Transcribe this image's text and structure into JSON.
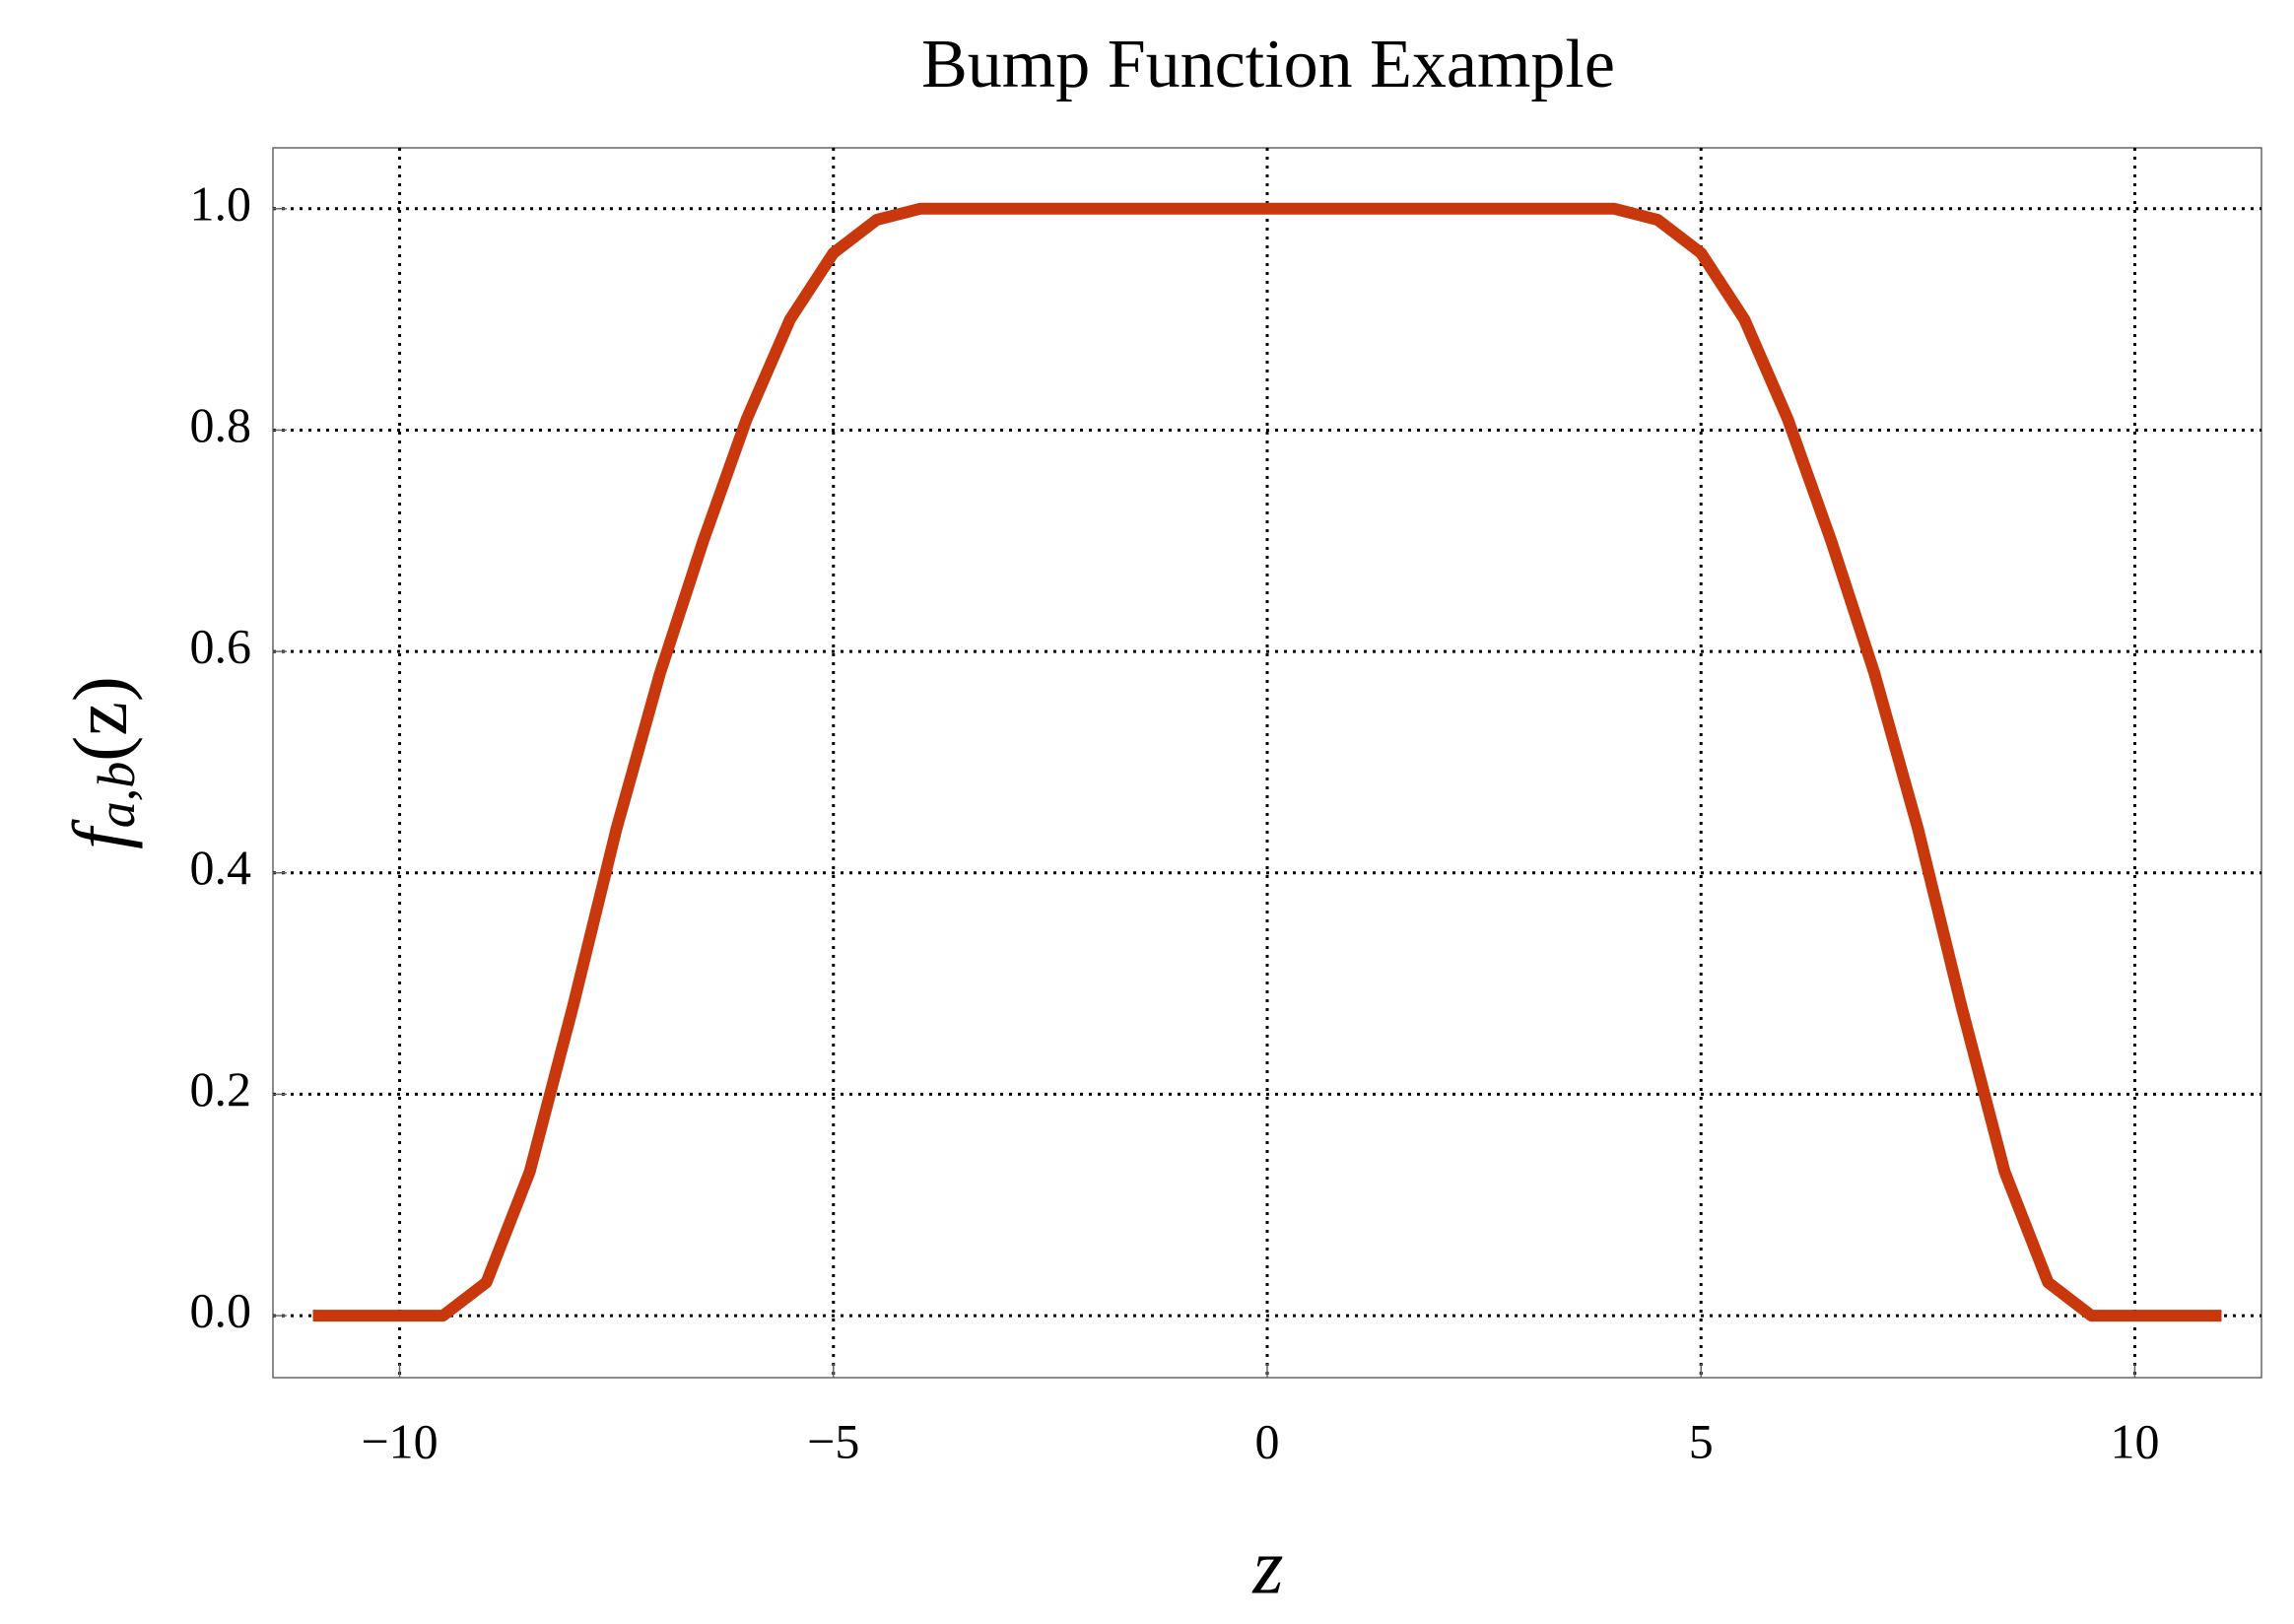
{
  "chart_data": {
    "type": "line",
    "title": "Bump Function Example",
    "xlabel": "z",
    "ylabel": {
      "base": "f",
      "subscript": "a,b",
      "argument": "(z)"
    },
    "x": [
      -11,
      -10,
      -9.5,
      -9,
      -8.5,
      -8,
      -7.5,
      -7,
      -6.5,
      -6,
      -5.5,
      -5,
      -4.5,
      -4,
      -3,
      0,
      3,
      4,
      4.5,
      5,
      5.5,
      6,
      6.5,
      7,
      7.5,
      8,
      8.5,
      9,
      9.5,
      10,
      11
    ],
    "values": [
      0,
      0,
      0,
      0.03,
      0.13,
      0.28,
      0.44,
      0.58,
      0.7,
      0.81,
      0.9,
      0.96,
      0.99,
      1,
      1,
      1,
      1,
      1,
      0.99,
      0.96,
      0.9,
      0.81,
      0.7,
      0.58,
      0.44,
      0.28,
      0.13,
      0.03,
      0,
      0,
      0
    ],
    "color": "#c8380c",
    "xlim": [
      -11.46,
      11.46
    ],
    "ylim": [
      -0.056,
      1.055
    ],
    "xticks": [
      {
        "value": -10,
        "label": "−10"
      },
      {
        "value": -5,
        "label": "−5"
      },
      0,
      5,
      10
    ],
    "yticks": [
      {
        "value": 0,
        "label": "0.0"
      },
      0.2,
      0.4,
      0.6,
      0.8,
      {
        "value": 1,
        "label": "1.0"
      }
    ],
    "grid": true
  }
}
